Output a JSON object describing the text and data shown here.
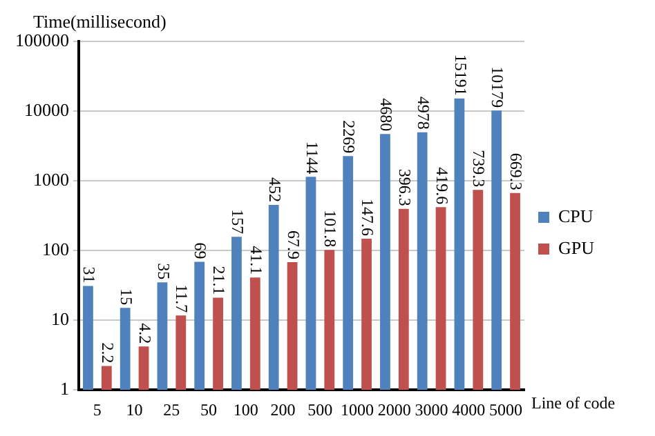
{
  "chart_data": {
    "type": "bar",
    "ylabel": "Time(millisecond)",
    "xlabel": "Line of code",
    "categories": [
      "5",
      "10",
      "25",
      "50",
      "100",
      "200",
      "500",
      "1000",
      "2000",
      "3000",
      "4000",
      "5000"
    ],
    "series": [
      {
        "name": "CPU",
        "color": "#4f81bd",
        "values": [
          31,
          15,
          35,
          69,
          157,
          452,
          1144,
          2269,
          4680,
          4978,
          15191,
          10179
        ]
      },
      {
        "name": "GPU",
        "color": "#c0504d",
        "values": [
          2.2,
          4.2,
          11.7,
          21.1,
          41.1,
          67.9,
          101.8,
          147.6,
          396.3,
          419.6,
          739.3,
          669.3
        ]
      }
    ],
    "log": "y",
    "ylim": [
      1,
      100000
    ],
    "yticks": [
      1,
      10,
      100,
      1000,
      10000,
      100000
    ],
    "grid": "y",
    "legend": "right",
    "data_labels": true
  }
}
